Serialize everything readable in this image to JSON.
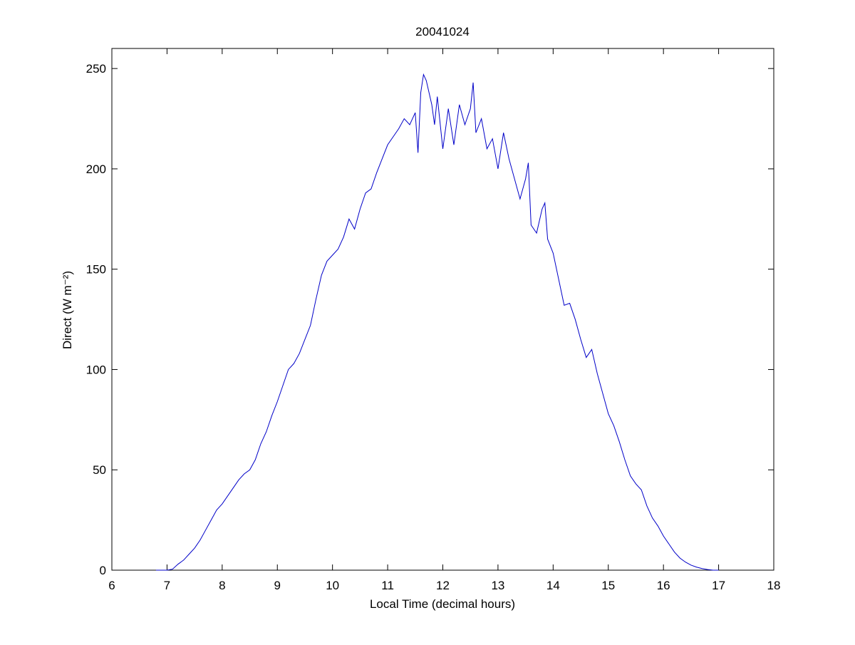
{
  "chart_data": {
    "type": "line",
    "title": "20041024",
    "x_label": "Local Time (decimal hours)",
    "y_label": "Direct (W m⁻²)",
    "color": "#0000c8",
    "x": [
      6.8,
      7.0,
      7.1,
      7.2,
      7.3,
      7.4,
      7.5,
      7.6,
      7.7,
      7.8,
      7.9,
      8.0,
      8.1,
      8.2,
      8.3,
      8.4,
      8.5,
      8.6,
      8.7,
      8.8,
      8.9,
      9.0,
      9.1,
      9.2,
      9.3,
      9.4,
      9.5,
      9.6,
      9.7,
      9.8,
      9.9,
      10.0,
      10.1,
      10.2,
      10.3,
      10.4,
      10.5,
      10.6,
      10.7,
      10.8,
      10.9,
      11.0,
      11.1,
      11.2,
      11.3,
      11.4,
      11.5,
      11.55,
      11.6,
      11.65,
      11.7,
      11.8,
      11.85,
      11.9,
      12.0,
      12.1,
      12.2,
      12.3,
      12.4,
      12.5,
      12.55,
      12.6,
      12.7,
      12.8,
      12.9,
      13.0,
      13.1,
      13.2,
      13.3,
      13.4,
      13.5,
      13.55,
      13.6,
      13.7,
      13.8,
      13.85,
      13.9,
      14.0,
      14.1,
      14.2,
      14.3,
      14.4,
      14.5,
      14.6,
      14.7,
      14.8,
      14.9,
      15.0,
      15.1,
      15.2,
      15.3,
      15.4,
      15.5,
      15.6,
      15.7,
      15.8,
      15.9,
      16.0,
      16.1,
      16.2,
      16.3,
      16.4,
      16.5,
      16.6,
      16.7,
      16.8,
      16.9,
      17.0
    ],
    "values": [
      0,
      0,
      0.5,
      3,
      5,
      8,
      11,
      15,
      20,
      25,
      30,
      33,
      37,
      41,
      45,
      48,
      50,
      55,
      63,
      69,
      77,
      84,
      92,
      100,
      103,
      108,
      115,
      122,
      135,
      147,
      154,
      157,
      160,
      166,
      175,
      170,
      180,
      188,
      190,
      198,
      205,
      212,
      216,
      220,
      225,
      222,
      228,
      208,
      238,
      247,
      244,
      232,
      222,
      236,
      210,
      230,
      212,
      232,
      222,
      230,
      243,
      218,
      225,
      210,
      215,
      200,
      218,
      205,
      195,
      185,
      195,
      203,
      172,
      168,
      180,
      183,
      165,
      158,
      145,
      132,
      133,
      125,
      115,
      106,
      110,
      98,
      88,
      78,
      72,
      64,
      55,
      47,
      43,
      40,
      32,
      26,
      22,
      17,
      13,
      9,
      6,
      4,
      2.5,
      1.5,
      0.8,
      0.3,
      0,
      0
    ],
    "xlim": [
      6,
      18
    ],
    "ylim": [
      0,
      260
    ],
    "xticks": [
      6,
      7,
      8,
      9,
      10,
      11,
      12,
      13,
      14,
      15,
      16,
      17,
      18
    ],
    "yticks": [
      0,
      50,
      100,
      150,
      200,
      250
    ]
  }
}
